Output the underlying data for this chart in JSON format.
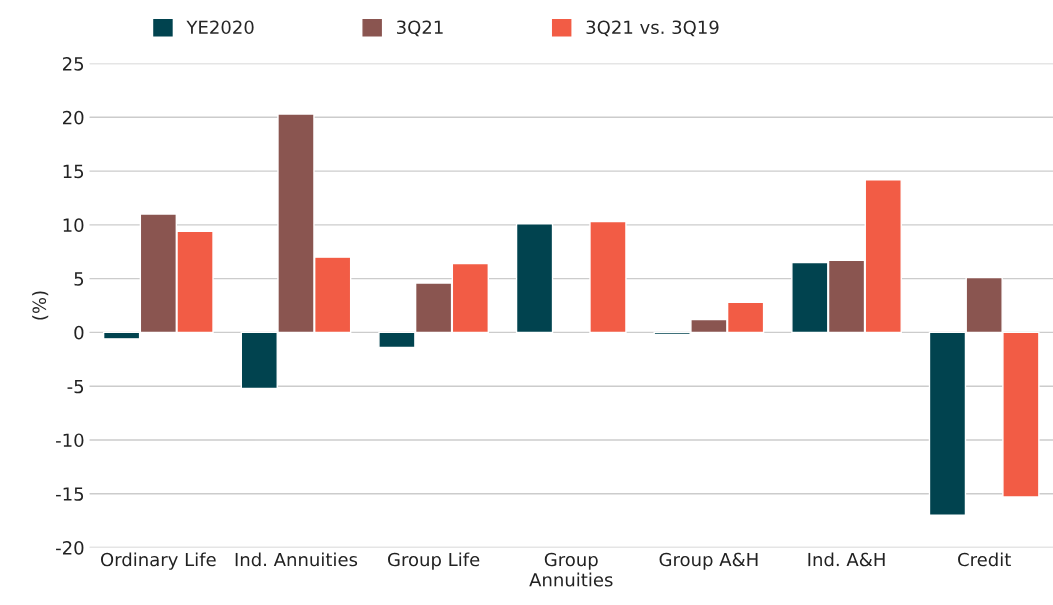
{
  "chart_data": {
    "type": "bar",
    "ylabel": "(%)",
    "categories": [
      "Ordinary Life",
      "Ind. Annuities",
      "Group Life",
      "Group\nAnnuities",
      "Group A&H",
      "Ind. A&H",
      "Credit"
    ],
    "series": [
      {
        "name": "YE2020",
        "color": "#01434f",
        "values": [
          -0.6,
          -5.2,
          -1.4,
          10.1,
          -0.2,
          6.5,
          -17.0
        ]
      },
      {
        "name": "3Q21",
        "color": "#8a5550",
        "values": [
          11.0,
          20.3,
          4.6,
          null,
          1.2,
          6.7,
          5.1
        ]
      },
      {
        "name": "3Q21 vs. 3Q19",
        "color": "#f25c45",
        "values": [
          9.4,
          7.0,
          6.4,
          10.3,
          2.8,
          14.2,
          -15.3
        ]
      }
    ],
    "ylim": [
      -20,
      25
    ],
    "yticks": [
      -20,
      -15,
      -10,
      -5,
      0,
      5,
      10,
      15,
      20,
      25
    ],
    "grid": "y",
    "legend": "top"
  }
}
